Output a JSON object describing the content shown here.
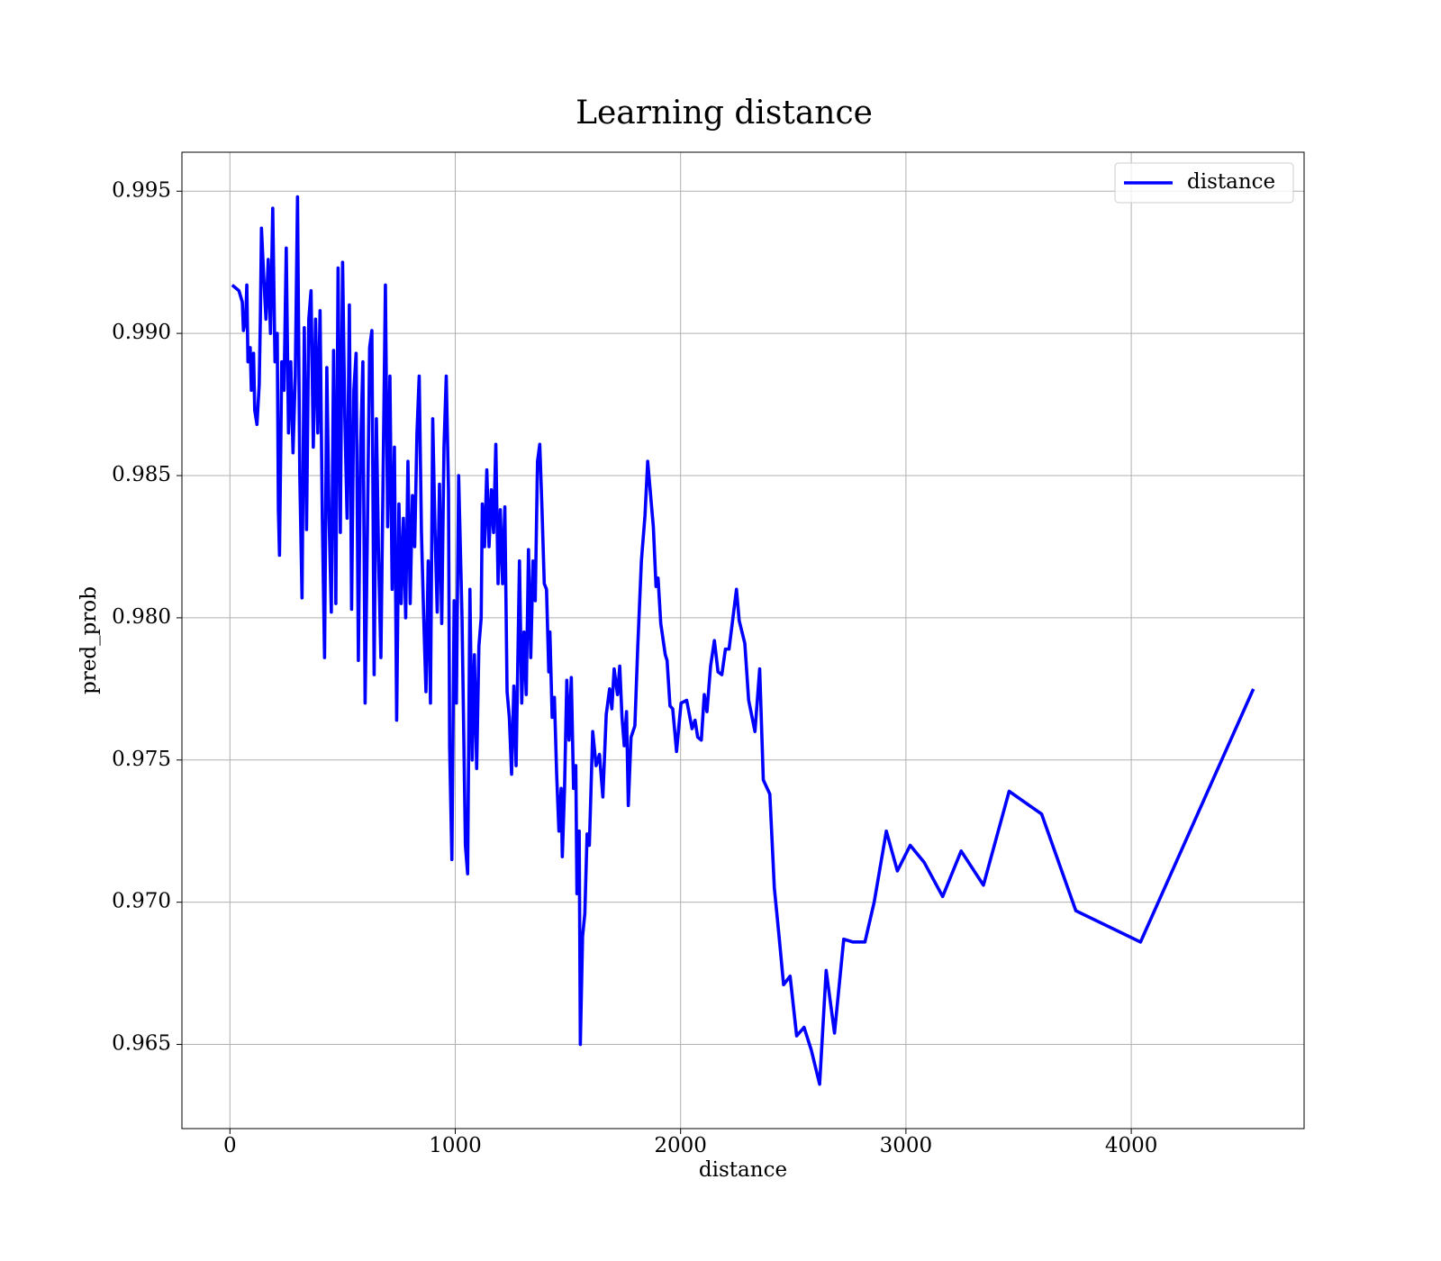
{
  "chart_data": {
    "type": "line",
    "title": "Learning distance",
    "x_label": "distance",
    "y_label": "pred_prob",
    "legend": "upper right",
    "grid": true,
    "xlim": [
      -213,
      4767
    ],
    "ylim": [
      0.96204,
      0.99637
    ],
    "xticks": [
      0,
      1000,
      2000,
      3000,
      4000
    ],
    "yticks": [
      0.965,
      {
        "value": 0.97,
        "label": "0.970"
      },
      0.975,
      {
        "value": 0.98,
        "label": "0.980"
      },
      0.985,
      {
        "value": 0.99,
        "label": "0.990"
      },
      0.995
    ],
    "x": [
      10,
      40,
      55,
      60,
      70,
      75,
      80,
      90,
      95,
      105,
      110,
      120,
      130,
      135,
      140,
      150,
      160,
      170,
      180,
      190,
      200,
      210,
      215,
      220,
      230,
      240,
      250,
      260,
      270,
      280,
      290,
      300,
      310,
      320,
      330,
      340,
      350,
      360,
      370,
      380,
      390,
      400,
      410,
      420,
      430,
      440,
      450,
      460,
      470,
      480,
      490,
      500,
      510,
      520,
      530,
      540,
      550,
      560,
      570,
      580,
      590,
      600,
      610,
      620,
      630,
      640,
      650,
      660,
      670,
      690,
      700,
      710,
      720,
      730,
      740,
      750,
      760,
      770,
      780,
      790,
      800,
      810,
      820,
      830,
      840,
      850,
      860,
      870,
      880,
      890,
      900,
      910,
      920,
      930,
      940,
      950,
      960,
      970,
      975,
      985,
      995,
      1005,
      1015,
      1030,
      1045,
      1055,
      1065,
      1075,
      1085,
      1095,
      1105,
      1115,
      1120,
      1130,
      1140,
      1150,
      1160,
      1170,
      1180,
      1190,
      1200,
      1210,
      1220,
      1230,
      1240,
      1250,
      1260,
      1270,
      1285,
      1295,
      1305,
      1315,
      1325,
      1335,
      1345,
      1355,
      1365,
      1375,
      1385,
      1395,
      1405,
      1415,
      1420,
      1430,
      1440,
      1450,
      1460,
      1470,
      1475,
      1485,
      1495,
      1505,
      1515,
      1525,
      1535,
      1540,
      1550,
      1555,
      1565,
      1575,
      1585,
      1595,
      1610,
      1625,
      1640,
      1655,
      1670,
      1685,
      1695,
      1705,
      1720,
      1730,
      1740,
      1750,
      1760,
      1768,
      1780,
      1797,
      1810,
      1826,
      1842,
      1854,
      1879,
      1891,
      1900,
      1912,
      1932,
      1940,
      1953,
      1965,
      1982,
      2002,
      2027,
      2051,
      2064,
      2076,
      2092,
      2105,
      2117,
      2133,
      2150,
      2166,
      2183,
      2199,
      2215,
      2248,
      2260,
      2285,
      2302,
      2330,
      2351,
      2367,
      2396,
      2416,
      2437,
      2457,
      2486,
      2515,
      2548,
      2580,
      2617,
      2646,
      2683,
      2724,
      2765,
      2818,
      2859,
      2913,
      2962,
      3019,
      3081,
      3163,
      3245,
      3344,
      3458,
      3602,
      3754,
      4041,
      4542
    ],
    "series": [
      {
        "name": "distance",
        "color": "#0000ff",
        "values": [
          0.9917,
          0.9915,
          0.9911,
          0.9901,
          0.9905,
          0.9917,
          0.989,
          0.9895,
          0.988,
          0.9893,
          0.9873,
          0.9868,
          0.9882,
          0.9905,
          0.9937,
          0.992,
          0.9905,
          0.9926,
          0.99,
          0.9944,
          0.989,
          0.99,
          0.9838,
          0.9822,
          0.989,
          0.988,
          0.993,
          0.9865,
          0.989,
          0.9858,
          0.9885,
          0.9948,
          0.985,
          0.9807,
          0.9902,
          0.9831,
          0.9905,
          0.9915,
          0.986,
          0.9905,
          0.9865,
          0.9908,
          0.9835,
          0.9786,
          0.9888,
          0.9835,
          0.9802,
          0.9894,
          0.9805,
          0.9923,
          0.983,
          0.9925,
          0.987,
          0.9835,
          0.991,
          0.9803,
          0.988,
          0.9893,
          0.9785,
          0.986,
          0.989,
          0.977,
          0.983,
          0.9895,
          0.9901,
          0.978,
          0.987,
          0.982,
          0.9786,
          0.9917,
          0.9832,
          0.9885,
          0.981,
          0.986,
          0.9764,
          0.984,
          0.9805,
          0.9835,
          0.98,
          0.9855,
          0.9805,
          0.9843,
          0.9825,
          0.9865,
          0.9885,
          0.983,
          0.98,
          0.9774,
          0.982,
          0.977,
          0.987,
          0.9831,
          0.9802,
          0.9847,
          0.9798,
          0.986,
          0.9885,
          0.9845,
          0.9755,
          0.9715,
          0.9806,
          0.977,
          0.985,
          0.98,
          0.972,
          0.971,
          0.981,
          0.975,
          0.9787,
          0.9747,
          0.979,
          0.98,
          0.984,
          0.9825,
          0.9852,
          0.9825,
          0.9845,
          0.983,
          0.9861,
          0.9812,
          0.9838,
          0.9812,
          0.9839,
          0.9774,
          0.9765,
          0.9745,
          0.9776,
          0.9748,
          0.982,
          0.977,
          0.9795,
          0.9773,
          0.9824,
          0.9786,
          0.982,
          0.9806,
          0.9855,
          0.9861,
          0.9838,
          0.9812,
          0.981,
          0.9781,
          0.9795,
          0.9765,
          0.9772,
          0.9745,
          0.9725,
          0.974,
          0.9716,
          0.974,
          0.9778,
          0.9757,
          0.9779,
          0.974,
          0.9748,
          0.9703,
          0.9725,
          0.965,
          0.9688,
          0.9696,
          0.9724,
          0.972,
          0.976,
          0.9748,
          0.9752,
          0.9737,
          0.9766,
          0.9775,
          0.9768,
          0.9782,
          0.9773,
          0.9783,
          0.9765,
          0.9755,
          0.9767,
          0.9734,
          0.9758,
          0.9762,
          0.979,
          0.982,
          0.9836,
          0.9855,
          0.9832,
          0.9811,
          0.9814,
          0.9798,
          0.9787,
          0.9785,
          0.9769,
          0.9768,
          0.9753,
          0.977,
          0.9771,
          0.9761,
          0.9764,
          0.9758,
          0.9757,
          0.9773,
          0.9767,
          0.9783,
          0.9792,
          0.9781,
          0.978,
          0.9789,
          0.9789,
          0.981,
          0.9799,
          0.9791,
          0.9771,
          0.976,
          0.9782,
          0.9743,
          0.9738,
          0.9705,
          0.9688,
          0.9671,
          0.9674,
          0.9653,
          0.9656,
          0.9648,
          0.9636,
          0.9676,
          0.9654,
          0.9687,
          0.9686,
          0.9686,
          0.97,
          0.9725,
          0.9711,
          0.972,
          0.9714,
          0.9702,
          0.9718,
          0.9706,
          0.9739,
          0.9731,
          0.9697,
          0.9686,
          0.9775
        ]
      }
    ]
  }
}
